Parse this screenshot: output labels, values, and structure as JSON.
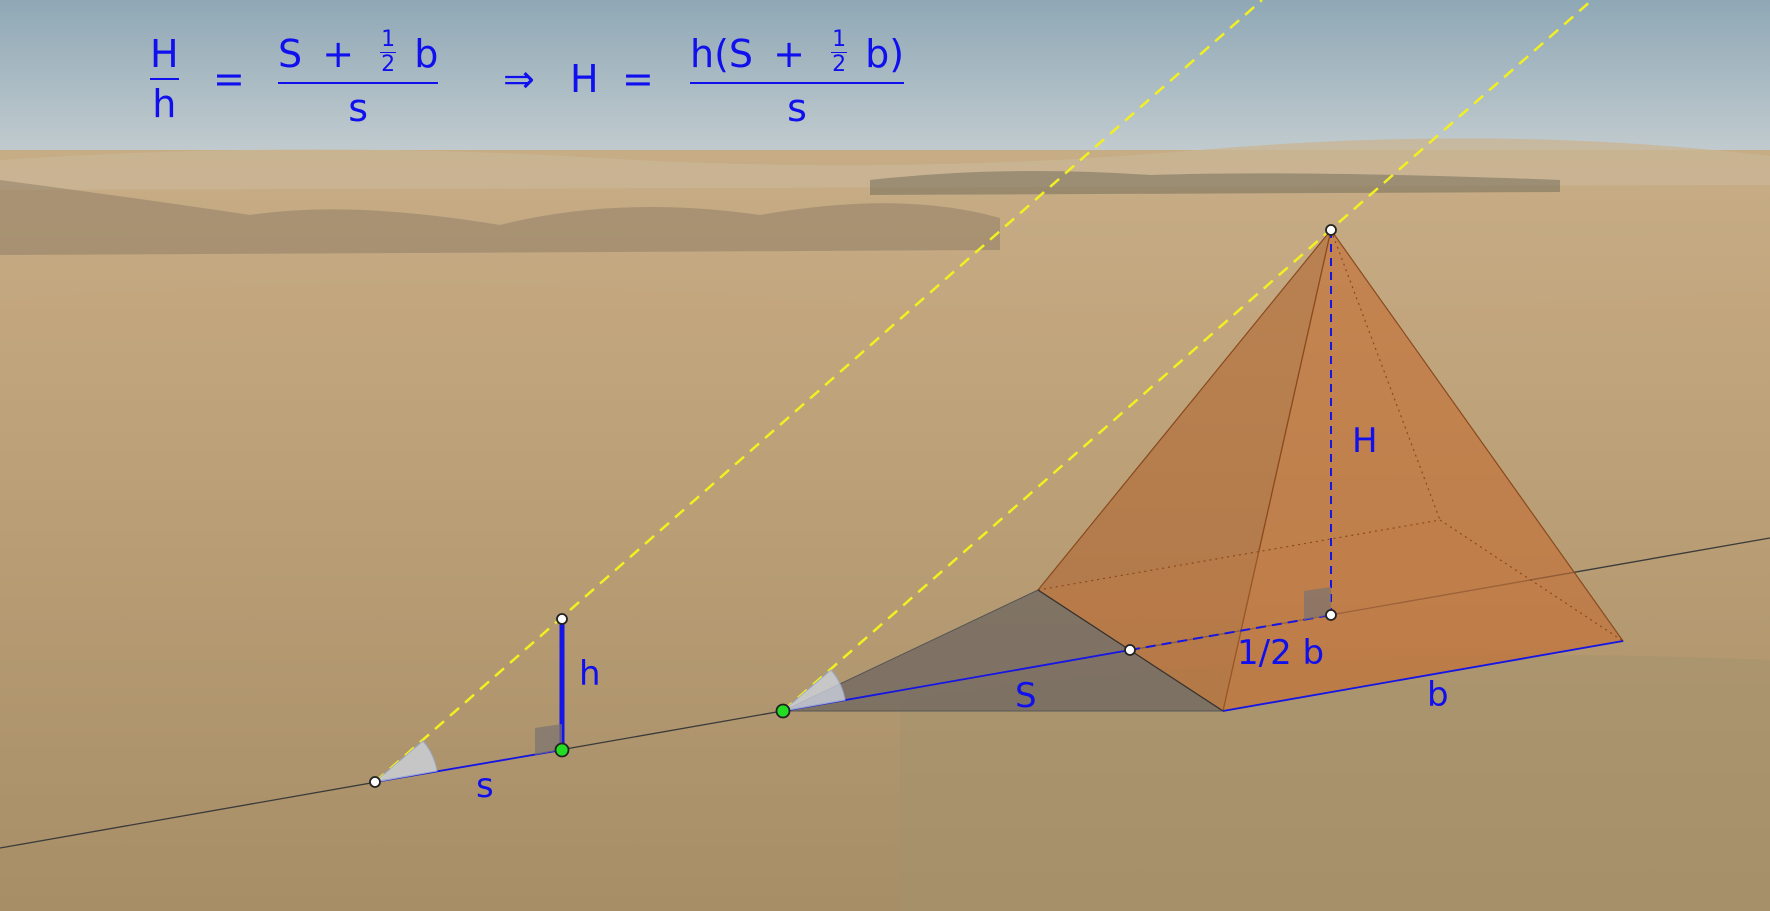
{
  "formula": {
    "left_num": "H",
    "left_den": "h",
    "equals": "=",
    "mid_num_a": "S",
    "mid_num_plus": "+",
    "half_num": "1",
    "half_den": "2",
    "mid_num_b": "b",
    "mid_den": "s",
    "implies": "⇒",
    "mid_H": "H",
    "equals2": "=",
    "right_num_a": "h(S",
    "right_num_plus": "+",
    "right_half_num": "1",
    "right_half_den": "2",
    "right_num_b": "b)",
    "right_den": "s"
  },
  "labels": {
    "h": "h",
    "s": "s",
    "S": "S",
    "half_b": "1/2 b",
    "b": "b",
    "H": "H"
  },
  "colors": {
    "label_blue": "#1010ee",
    "sun_ray_yellow": "#f2f020",
    "pyramid_orange": "#c06a2a",
    "ground_line": "#3a3a3a",
    "point_green": "#22dd22"
  }
}
